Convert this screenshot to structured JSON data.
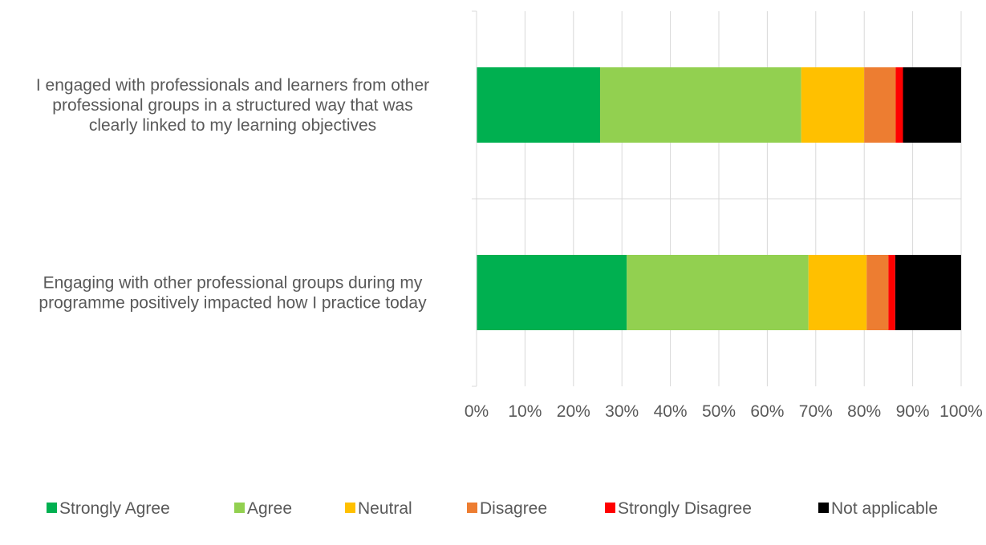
{
  "chart_data": {
    "type": "bar",
    "orientation": "horizontal",
    "stacked": "percent",
    "categories": [
      [
        "I engaged with professionals and learners from other",
        "professional groups in a structured way that was",
        "clearly linked to my learning objectives"
      ],
      [
        "Engaging with other professional groups during my",
        "programme positively impacted how I practice today"
      ]
    ],
    "series": [
      {
        "name": "Strongly Agree",
        "color": "#00B050",
        "values": [
          25.5,
          31.0
        ]
      },
      {
        "name": "Agree",
        "color": "#92D050",
        "values": [
          41.5,
          37.5
        ]
      },
      {
        "name": "Neutral",
        "color": "#FFC000",
        "values": [
          13.0,
          12.0
        ]
      },
      {
        "name": "Disagree",
        "color": "#ED7D31",
        "values": [
          6.5,
          4.5
        ]
      },
      {
        "name": "Strongly Disagree",
        "color": "#FF0000",
        "values": [
          1.5,
          1.4
        ]
      },
      {
        "name": "Not applicable",
        "color": "#000000",
        "values": [
          12.0,
          13.6
        ]
      }
    ],
    "xlim": [
      0,
      100
    ],
    "xticks": [
      "0%",
      "10%",
      "20%",
      "30%",
      "40%",
      "50%",
      "60%",
      "70%",
      "80%",
      "90%",
      "100%"
    ],
    "grid": true,
    "legend": "bottom"
  }
}
